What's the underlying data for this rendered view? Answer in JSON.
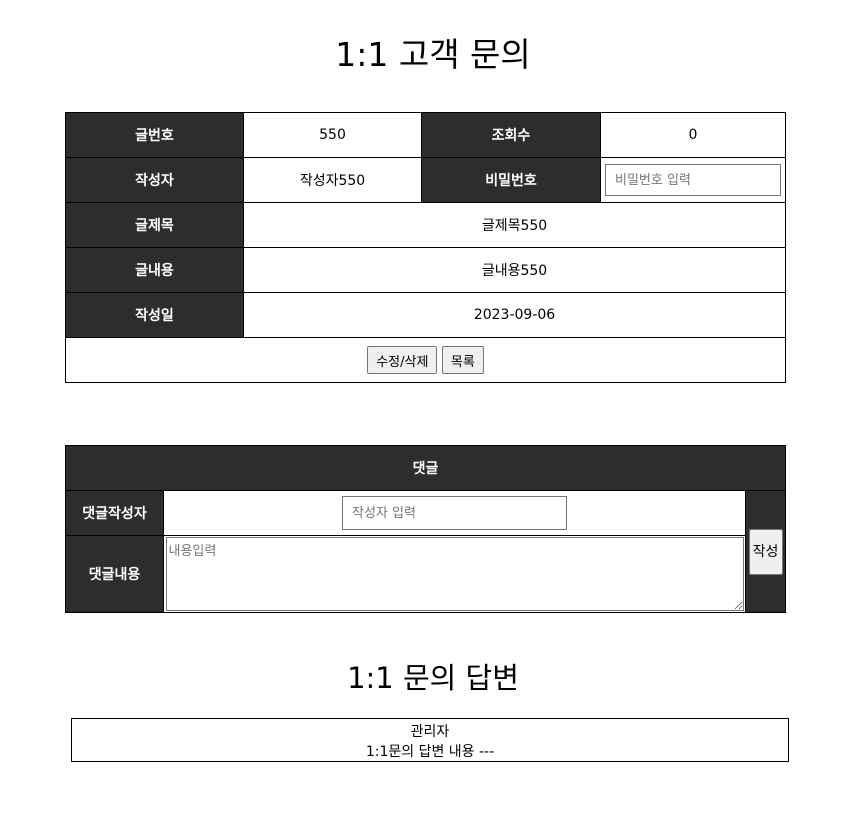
{
  "page": {
    "title": "1:1 고객 문의"
  },
  "detail": {
    "no_label": "글번호",
    "no_value": "550",
    "views_label": "조회수",
    "views_value": "0",
    "writer_label": "작성자",
    "writer_value": "작성자550",
    "password_label": "비밀번호",
    "password_placeholder": "비밀번호 입력",
    "subject_label": "글제목",
    "subject_value": "글제목550",
    "content_label": "글내용",
    "content_value": "글내용550",
    "date_label": "작성일",
    "date_value": "2023-09-06",
    "edit_delete_button": "수정/삭제",
    "list_button": "목록"
  },
  "comment": {
    "header": "댓글",
    "writer_label": "댓글작성자",
    "writer_placeholder": "작성자 입력",
    "content_label": "댓글내용",
    "content_placeholder": "내용입력",
    "submit_button": "작성"
  },
  "answer": {
    "title": "1:1 문의 답변",
    "author": "관리자",
    "content": "1:1문의 답변 내용 ---"
  }
}
